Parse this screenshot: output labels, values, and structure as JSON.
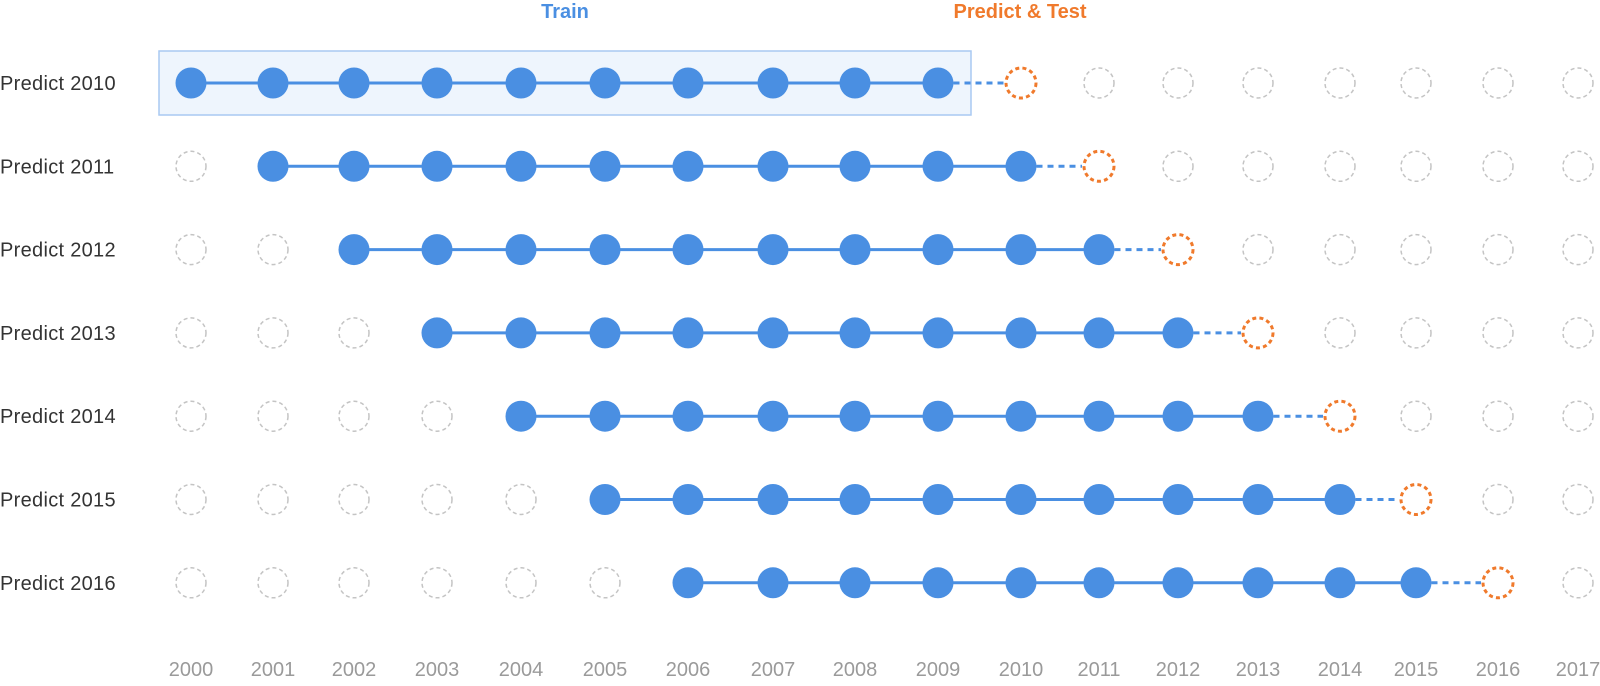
{
  "legend": {
    "train_label": "Train",
    "test_label": "Predict & Test"
  },
  "colors": {
    "train": "#4a8fe2",
    "test": "#f07a2c",
    "unused": "#c4c4c4",
    "highlight_fill": "#eef5fd",
    "highlight_stroke": "#a9c9f2",
    "row_label": "#333333",
    "year_label": "#9a9a9a"
  },
  "years": [
    "2000",
    "2001",
    "2002",
    "2003",
    "2004",
    "2005",
    "2006",
    "2007",
    "2008",
    "2009",
    "2010",
    "2011",
    "2012",
    "2013",
    "2014",
    "2015",
    "2016",
    "2017"
  ],
  "rows": [
    {
      "label": "Predict 2010",
      "train_start": "2000",
      "train_end": "2009",
      "test_year": "2010",
      "highlighted": true
    },
    {
      "label": "Predict 2011",
      "train_start": "2001",
      "train_end": "2010",
      "test_year": "2011",
      "highlighted": false
    },
    {
      "label": "Predict 2012",
      "train_start": "2002",
      "train_end": "2011",
      "test_year": "2012",
      "highlighted": false
    },
    {
      "label": "Predict 2013",
      "train_start": "2003",
      "train_end": "2012",
      "test_year": "2013",
      "highlighted": false
    },
    {
      "label": "Predict 2014",
      "train_start": "2004",
      "train_end": "2013",
      "test_year": "2014",
      "highlighted": false
    },
    {
      "label": "Predict 2015",
      "train_start": "2005",
      "train_end": "2014",
      "test_year": "2015",
      "highlighted": false
    },
    {
      "label": "Predict 2016",
      "train_start": "2006",
      "train_end": "2015",
      "test_year": "2016",
      "highlighted": false
    }
  ]
}
